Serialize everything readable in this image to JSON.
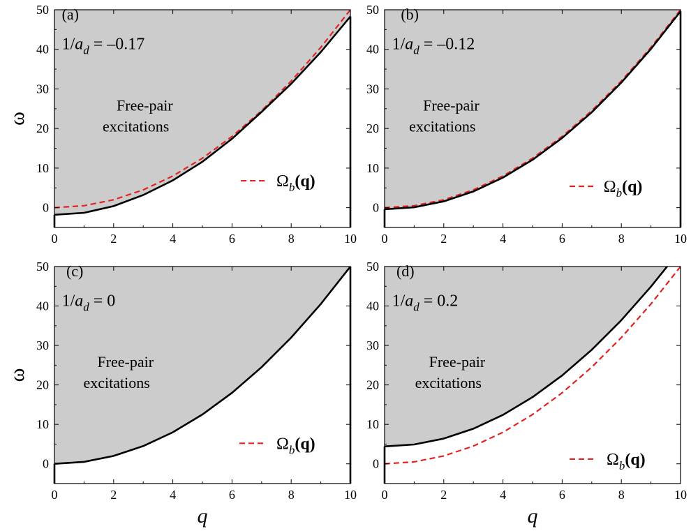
{
  "chart_data": [
    {
      "type": "area",
      "panel": "(a)",
      "param_prefix": "1/a",
      "param_sub": "d",
      "param_value": " = –0.17",
      "region_label_line1": "Free-pair",
      "region_label_line2": "excitations",
      "legend_symbol": "Ω",
      "legend_sub": "b",
      "legend_arg": "(q)",
      "xlim": [
        0,
        10
      ],
      "ylim": [
        -5,
        50
      ],
      "x_ticks": [
        "0",
        "2",
        "4",
        "6",
        "8",
        "10"
      ],
      "y_ticks": [
        "0",
        "10",
        "20",
        "30",
        "40",
        "50"
      ],
      "show_ylabel": true,
      "show_xlabel": false,
      "ylabel": "ω",
      "xlabel": "",
      "boundary": {
        "name": "continuum edge",
        "color": "#000000",
        "x": [
          0,
          1,
          2,
          3,
          4,
          5,
          6,
          7,
          8,
          9,
          10
        ],
        "y": [
          -1.8,
          -1.3,
          0.4,
          3.2,
          6.9,
          11.6,
          17.4,
          24.2,
          31.3,
          39.3,
          48.3
        ]
      },
      "dashed": {
        "name": "Ω_b(q)",
        "color": "#e32222",
        "x": [
          0,
          1,
          2,
          3,
          4,
          5,
          6,
          7,
          8,
          9,
          10
        ],
        "y": [
          0,
          0.5,
          2,
          4.5,
          8,
          12.5,
          18,
          24.5,
          32,
          40.5,
          50
        ]
      },
      "fill_color": "#cccccc"
    },
    {
      "type": "area",
      "panel": "(b)",
      "param_prefix": "1/a",
      "param_sub": "d",
      "param_value": " = –0.12",
      "region_label_line1": "Free-pair",
      "region_label_line2": "excitations",
      "legend_symbol": "Ω",
      "legend_sub": "b",
      "legend_arg": "(q)",
      "xlim": [
        0,
        10
      ],
      "ylim": [
        -5,
        50
      ],
      "x_ticks": [
        "0",
        "2",
        "4",
        "6",
        "8",
        "10"
      ],
      "y_ticks": [
        "0",
        "10",
        "20",
        "30",
        "40",
        "50"
      ],
      "show_ylabel": false,
      "show_xlabel": false,
      "ylabel": "",
      "xlabel": "",
      "boundary": {
        "name": "continuum edge",
        "color": "#000000",
        "x": [
          0,
          1,
          2,
          3,
          4,
          5,
          6,
          7,
          8,
          9,
          10
        ],
        "y": [
          -0.4,
          0.1,
          1.6,
          4.1,
          7.6,
          12.1,
          17.6,
          24.1,
          31.6,
          40.1,
          49.6
        ]
      },
      "dashed": {
        "name": "Ω_b(q)",
        "color": "#e32222",
        "x": [
          0,
          1,
          2,
          3,
          4,
          5,
          6,
          7,
          8,
          9,
          10
        ],
        "y": [
          0,
          0.5,
          2,
          4.5,
          8,
          12.5,
          18,
          24.5,
          32,
          40.5,
          50
        ]
      },
      "fill_color": "#cccccc"
    },
    {
      "type": "area",
      "panel": "(c)",
      "param_prefix": "1/a",
      "param_sub": "d",
      "param_value": " = 0",
      "region_label_line1": "Free-pair",
      "region_label_line2": "excitations",
      "legend_symbol": "Ω",
      "legend_sub": "b",
      "legend_arg": "(q)",
      "xlim": [
        0,
        10
      ],
      "ylim": [
        -5,
        50
      ],
      "x_ticks": [
        "0",
        "2",
        "4",
        "6",
        "8",
        "10"
      ],
      "y_ticks": [
        "0",
        "10",
        "20",
        "30",
        "40",
        "50"
      ],
      "show_ylabel": true,
      "show_xlabel": true,
      "ylabel": "ω",
      "xlabel": "q",
      "boundary": {
        "name": "continuum edge",
        "color": "#000000",
        "x": [
          0,
          1,
          2,
          3,
          4,
          5,
          6,
          7,
          8,
          9,
          10
        ],
        "y": [
          0,
          0.5,
          2,
          4.5,
          8,
          12.5,
          18,
          24.5,
          32,
          40.5,
          50
        ]
      },
      "dashed": {
        "name": "Ω_b(q)",
        "color": "#e32222",
        "x": [
          0,
          1,
          2,
          3,
          4,
          5,
          6,
          7,
          8,
          9,
          10
        ],
        "y": [
          0,
          0.5,
          2,
          4.5,
          8,
          12.5,
          18,
          24.5,
          32,
          40.5,
          50
        ]
      },
      "fill_color": "#cccccc"
    },
    {
      "type": "area",
      "panel": "(d)",
      "param_prefix": "1/a",
      "param_sub": "d",
      "param_value": " = 0.2",
      "region_label_line1": "Free-pair",
      "region_label_line2": "excitations",
      "legend_symbol": "Ω",
      "legend_sub": "b",
      "legend_arg": "(q)",
      "xlim": [
        0,
        10
      ],
      "ylim": [
        -5,
        50
      ],
      "x_ticks": [
        "0",
        "2",
        "4",
        "6",
        "8",
        "10"
      ],
      "y_ticks": [
        "0",
        "10",
        "20",
        "30",
        "40",
        "50"
      ],
      "show_ylabel": false,
      "show_xlabel": true,
      "ylabel": "",
      "xlabel": "q",
      "boundary": {
        "name": "continuum edge",
        "color": "#000000",
        "x": [
          0,
          1,
          2,
          3,
          4,
          5,
          6,
          7,
          8,
          9,
          9.6
        ],
        "y": [
          4.4,
          4.9,
          6.4,
          8.9,
          12.4,
          16.9,
          22.4,
          28.9,
          36.4,
          44.9,
          50.5
        ]
      },
      "dashed": {
        "name": "Ω_b(q)",
        "color": "#e32222",
        "x": [
          0,
          1,
          2,
          3,
          4,
          5,
          6,
          7,
          8,
          9,
          10
        ],
        "y": [
          0,
          0.5,
          2,
          4.5,
          8,
          12.5,
          18,
          24.5,
          32,
          40.5,
          50
        ]
      },
      "fill_color": "#cccccc"
    }
  ]
}
